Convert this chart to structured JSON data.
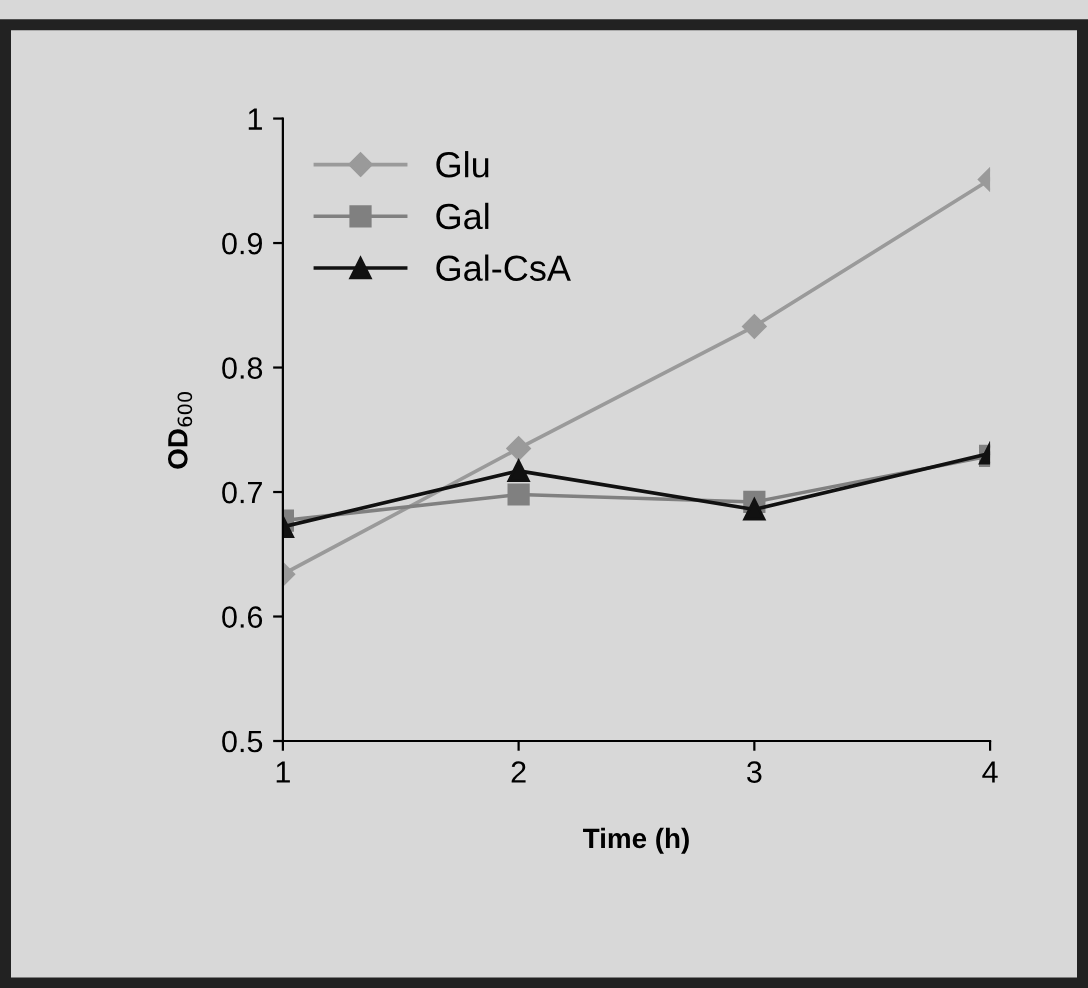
{
  "chart_data": {
    "type": "line",
    "xlabel": "Time (h)",
    "ylabel": "OD$_{600}$",
    "x": [
      1,
      2,
      3,
      4
    ],
    "xlim": [
      1,
      4
    ],
    "xticks": [
      1,
      2,
      3,
      4
    ],
    "ylim": [
      0.5,
      1
    ],
    "yticks": [
      0.5,
      0.6,
      0.7,
      0.8,
      0.9,
      1
    ],
    "series": [
      {
        "name": "Glu",
        "color": "#9a9a9a",
        "marker": "diamond",
        "values": [
          0.634,
          0.735,
          0.833,
          0.951
        ]
      },
      {
        "name": "Gal",
        "color": "#808080",
        "marker": "square",
        "values": [
          0.677,
          0.698,
          0.692,
          0.729
        ]
      },
      {
        "name": "Gal-CsA",
        "color": "#111111",
        "marker": "triangle",
        "values": [
          0.672,
          0.717,
          0.686,
          0.731
        ]
      }
    ],
    "legend": "top left",
    "grid": false
  }
}
